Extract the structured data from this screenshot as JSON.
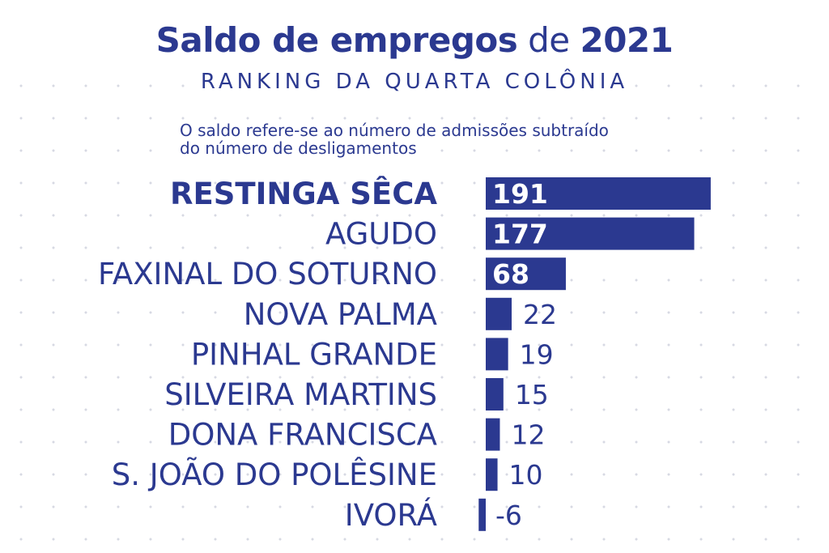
{
  "header": {
    "title_bold": "Saldo de empregos",
    "title_mid": "de",
    "title_year": "2021",
    "subtitle": "RANKING DA QUARTA COLÔNIA",
    "note_line1": "O saldo refere-se ao número de admissões subtraído",
    "note_line2": "do número de desligamentos"
  },
  "colors": {
    "accent": "#2b3990",
    "background": "#ffffff"
  },
  "chart_data": {
    "type": "bar",
    "orientation": "horizontal",
    "title": "Saldo de empregos de 2021",
    "subtitle": "RANKING DA QUARTA COLÔNIA",
    "categories": [
      "RESTINGA SÊCA",
      "AGUDO",
      "FAXINAL DO SOTURNO",
      "NOVA PALMA",
      "PINHAL GRANDE",
      "SILVEIRA MARTINS",
      "DONA FRANCISCA",
      "S. JOÃO DO POLÊSINE",
      "IVORÁ"
    ],
    "values": [
      191,
      177,
      68,
      22,
      19,
      15,
      12,
      10,
      -6
    ],
    "data_labels": [
      "191",
      "177",
      "68",
      "22",
      "19",
      "15",
      "12",
      "10",
      "-6"
    ],
    "highlight_category": "RESTINGA SÊCA",
    "xlim": [
      -6,
      191
    ],
    "grid": false,
    "legend": "none"
  }
}
